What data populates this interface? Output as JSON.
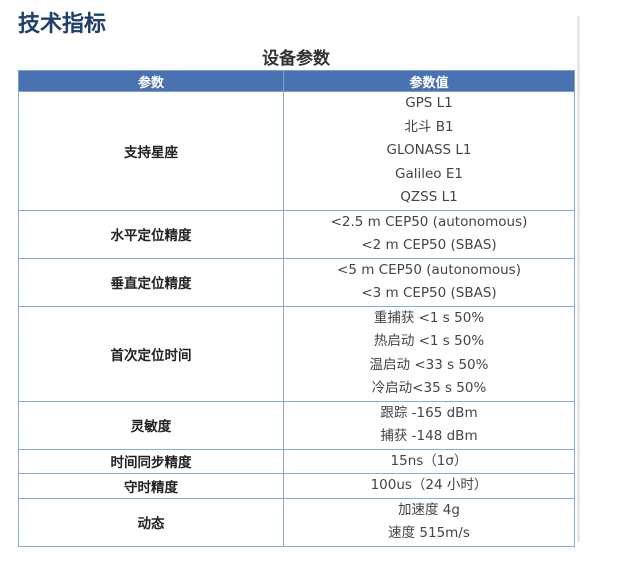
{
  "page_title": "技术指标",
  "table_title": "设备参数",
  "headers": [
    "参数",
    "参数值"
  ],
  "rows": [
    {
      "name": "支持星座",
      "values": [
        "GPS L1",
        "北斗 B1",
        "GLONASS L1",
        "Galileo E1",
        "QZSS L1"
      ]
    },
    {
      "name": "水平定位精度",
      "values": [
        "<2.5 m CEP50 (autonomous)",
        "<2 m CEP50 (SBAS)"
      ]
    },
    {
      "name": "垂直定位精度",
      "values": [
        "<5 m CEP50 (autonomous)",
        "<3 m CEP50 (SBAS)"
      ]
    },
    {
      "name": "首次定位时间",
      "values": [
        "重捕获 <1 s 50%",
        "热启动 <1 s 50%",
        "温启动 <33 s 50%",
        "冷启动<35 s 50%"
      ]
    },
    {
      "name": "灵敏度",
      "values": [
        "跟踪 -165 dBm",
        "捕获 -148 dBm"
      ]
    },
    {
      "name": "时间同步精度",
      "values": [
        "15ns（1σ）"
      ]
    },
    {
      "name": "守时精度",
      "values": [
        "100us（24 小时）"
      ]
    },
    {
      "name": "动态",
      "values": [
        "加速度 4g",
        "速度 515m/s"
      ]
    }
  ],
  "colors": {
    "header_bg": "#4a72b0",
    "border": "#8ba9d4",
    "title": "#1f3f6e"
  }
}
